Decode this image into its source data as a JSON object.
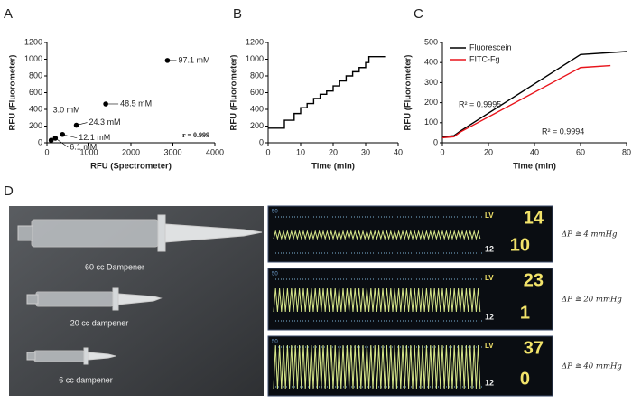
{
  "panels": [
    "A",
    "B",
    "C",
    "D"
  ],
  "chart_data": [
    {
      "type": "scatter",
      "xlabel": "RFU (Spectrometer)",
      "ylabel": "RFU (Fluorometer)",
      "x": [
        2870,
        1400,
        700,
        370,
        200,
        100
      ],
      "values": [
        985,
        465,
        210,
        100,
        55,
        30
      ],
      "labels": [
        "97.1 mM",
        "48.5 mM",
        "24.3 mM",
        "12.1 mM",
        "6.1 mM",
        "3.0 mM"
      ],
      "color": "#000000",
      "annotations": [
        "r = 0.999"
      ],
      "xlim": [
        0,
        4000
      ],
      "xticks": [
        0,
        1000,
        2000,
        3000,
        4000
      ],
      "ylim": [
        0,
        1200
      ],
      "yticks": [
        0,
        200,
        400,
        600,
        800,
        1000,
        1200
      ]
    },
    {
      "type": "line",
      "xlabel": "Time (min)",
      "ylabel": "RFU (Fluorometer)",
      "series": [
        {
          "color": "#000000",
          "x": [
            0,
            5,
            5,
            8,
            8,
            10,
            10,
            12,
            12,
            14,
            14,
            16,
            16,
            18,
            18,
            20,
            20,
            22,
            22,
            24,
            24,
            26,
            26,
            28,
            28,
            30,
            30,
            31,
            31,
            36
          ],
          "values": [
            175,
            175,
            270,
            270,
            350,
            350,
            420,
            420,
            470,
            470,
            530,
            530,
            580,
            580,
            620,
            620,
            680,
            680,
            740,
            740,
            800,
            800,
            850,
            850,
            900,
            900,
            960,
            960,
            1030,
            1030
          ]
        }
      ],
      "xlim": [
        0,
        40
      ],
      "xticks": [
        0,
        10,
        20,
        30,
        40
      ],
      "ylim": [
        0,
        1200
      ],
      "yticks": [
        0,
        200,
        400,
        600,
        800,
        1000,
        1200
      ]
    },
    {
      "type": "line",
      "xlabel": "Time (min)",
      "ylabel": "RFU (Fluorometer)",
      "series": [
        {
          "name": "Fluorescein",
          "color": "#000000",
          "x": [
            0,
            5,
            8,
            60,
            80
          ],
          "values": [
            30,
            35,
            60,
            440,
            455
          ]
        },
        {
          "name": "FITC-Fg",
          "color": "#e8141b",
          "x": [
            0,
            5,
            8,
            60,
            73
          ],
          "values": [
            25,
            30,
            55,
            375,
            385
          ]
        }
      ],
      "annotations": [
        "R² = 0.9995",
        "R² = 0.9994"
      ],
      "legend": "upper left",
      "xlim": [
        0,
        80
      ],
      "xticks": [
        0,
        20,
        40,
        60,
        80
      ],
      "ylim": [
        0,
        500
      ],
      "yticks": [
        0,
        100,
        200,
        300,
        400,
        500
      ]
    }
  ],
  "photo": {
    "labels": [
      "60 cc Dampener",
      "20 cc dampener",
      "6 cc dampener"
    ]
  },
  "monitors": [
    {
      "scale": "50",
      "chamber": "LV",
      "systolic": "14",
      "baseline": "12",
      "diastolic": "10",
      "pressure": "ΔP ≅ 4 mmHg"
    },
    {
      "scale": "50",
      "chamber": "LV",
      "systolic": "23",
      "baseline": "12",
      "diastolic": "1",
      "pressure": "ΔP ≅ 20 mmHg"
    },
    {
      "scale": "50",
      "chamber": "LV",
      "systolic": "37",
      "baseline": "12",
      "diastolic": "0",
      "pressure": "ΔP ≅ 40 mmHg"
    }
  ]
}
